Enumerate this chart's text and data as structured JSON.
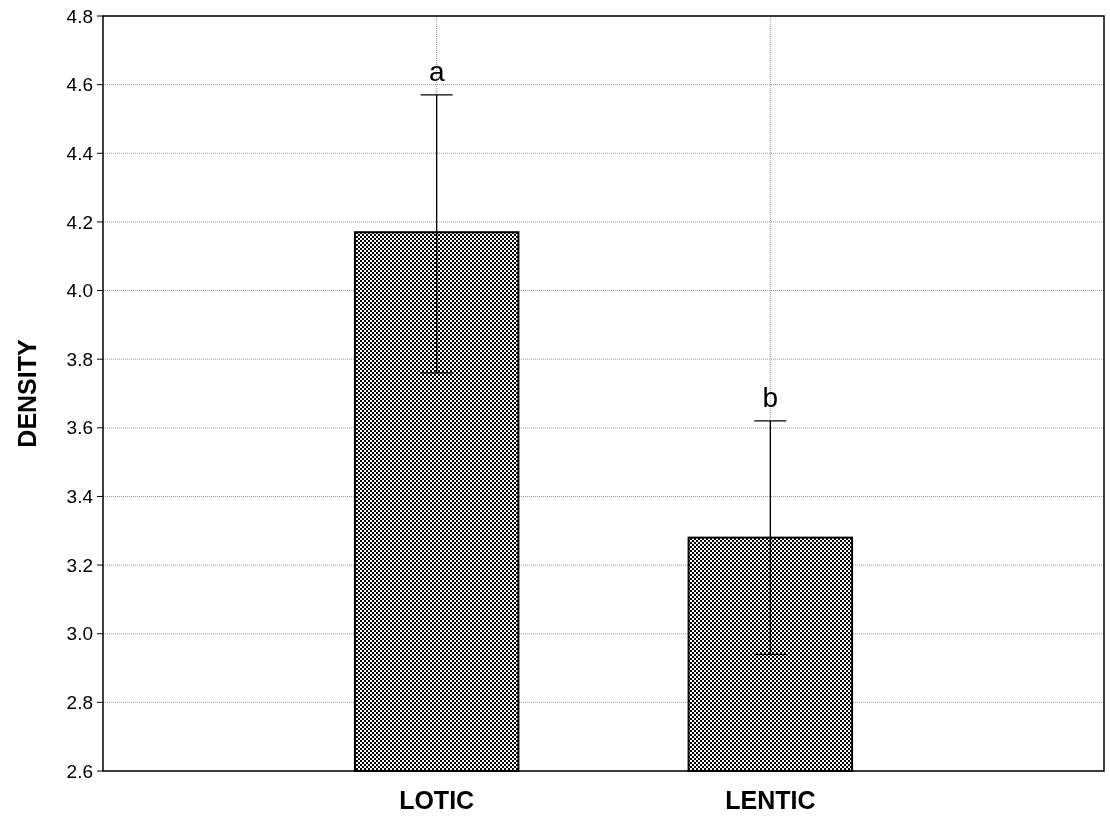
{
  "chart_data": {
    "type": "bar",
    "ylabel": "DENSITY",
    "categories": [
      "LOTIC",
      "LENTIC"
    ],
    "values": [
      4.17,
      3.28
    ],
    "errors": [
      [
        3.76,
        4.57
      ],
      [
        2.94,
        3.62
      ]
    ],
    "color": "#000000",
    "ylim": [
      2.6,
      4.8
    ],
    "yticks": [
      {
        "value": 2.6,
        "label": "2.6"
      },
      {
        "value": 2.8,
        "label": "2.8"
      },
      {
        "value": 3.0,
        "label": "3.0"
      },
      {
        "value": 3.2,
        "label": "3.2"
      },
      {
        "value": 3.4,
        "label": "3.4"
      },
      {
        "value": 3.6,
        "label": "3.6"
      },
      {
        "value": 3.8,
        "label": "3.8"
      },
      {
        "value": 4.0,
        "label": "4.0"
      },
      {
        "value": 4.2,
        "label": "4.2"
      },
      {
        "value": 4.4,
        "label": "4.4"
      },
      {
        "value": 4.6,
        "label": "4.6"
      },
      {
        "value": 4.8,
        "label": "4.8"
      }
    ],
    "grid": true,
    "annotations": [
      {
        "text": "a",
        "x": "LOTIC",
        "y": 4.57
      },
      {
        "text": "b",
        "x": "LENTIC",
        "y": 3.62
      }
    ]
  }
}
